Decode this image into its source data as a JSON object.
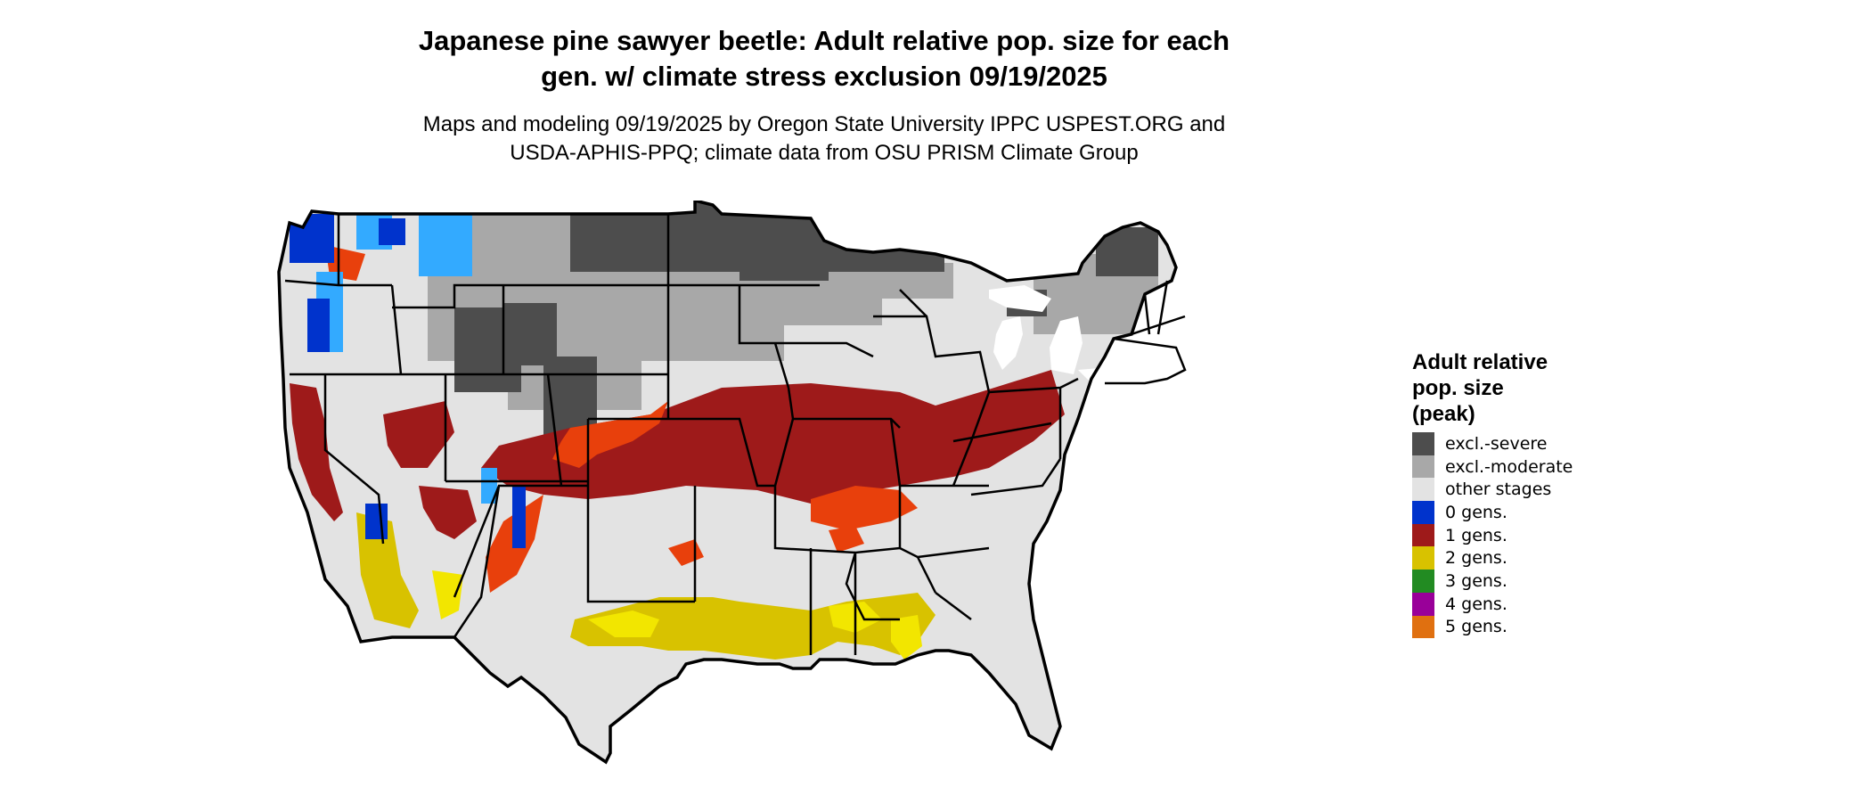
{
  "title_line1": "Japanese pine sawyer beetle: Adult relative pop. size for each",
  "title_line2": "gen. w/ climate stress exclusion 09/19/2025",
  "subtitle_line1": "Maps and modeling 09/19/2025 by Oregon State University IPPC USPEST.ORG and",
  "subtitle_line2": "USDA-APHIS-PPQ; climate data from OSU PRISM Climate Group",
  "legend": {
    "title_line1": "Adult relative",
    "title_line2": "pop. size",
    "title_line3": "(peak)",
    "items": [
      {
        "label": "excl.-severe",
        "color": "#4d4d4d"
      },
      {
        "label": "excl.-moderate",
        "color": "#a8a8a8"
      },
      {
        "label": "other stages",
        "color": "#e3e3e3"
      },
      {
        "label": "0 gens.",
        "color": "#0033cc"
      },
      {
        "label": "1 gens.",
        "color": "#9e1a1a"
      },
      {
        "label": "2 gens.",
        "color": "#d8c200"
      },
      {
        "label": "3 gens.",
        "color": "#228b22"
      },
      {
        "label": "4 gens.",
        "color": "#990099"
      },
      {
        "label": "5 gens.",
        "color": "#e07010"
      }
    ]
  },
  "map_colors": {
    "border": "#000000",
    "one_gen_light": "#e8400c",
    "two_gen_light": "#f2e600",
    "zero_gen_light": "#33aaff"
  }
}
